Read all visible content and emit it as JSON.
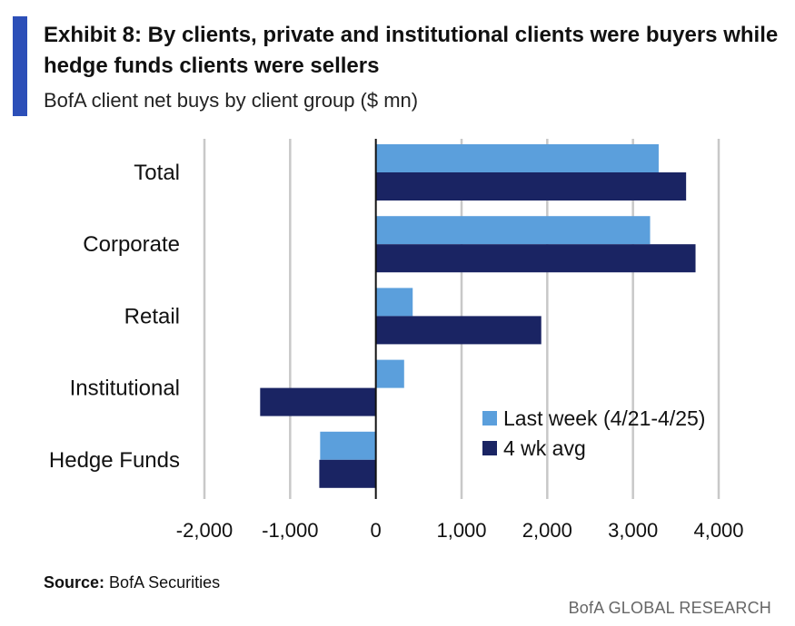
{
  "header": {
    "title": "Exhibit 8: By clients, private and institutional clients were buyers while hedge funds clients were sellers",
    "subtitle": "BofA client net buys by client group ($ mn)"
  },
  "footer": {
    "source_label": "Source:",
    "source_text": "BofA Securities",
    "brand": "BofA GLOBAL RESEARCH"
  },
  "colors": {
    "accent": "#2c4fb8",
    "series1": "#5b9fdc",
    "series2": "#1a2463",
    "grid": "#c8c8c8"
  },
  "chart_data": {
    "type": "bar",
    "orientation": "horizontal",
    "title": "Exhibit 8: By clients, private and institutional clients were buyers while hedge funds clients were sellers",
    "subtitle": "BofA client net buys by client group ($ mn)",
    "categories": [
      "Total",
      "Corporate",
      "Retail",
      "Institutional",
      "Hedge Funds"
    ],
    "series": [
      {
        "name": "Last week (4/21-4/25)",
        "values": [
          3300,
          3200,
          430,
          330,
          -650
        ]
      },
      {
        "name": "4 wk avg",
        "values": [
          3620,
          3730,
          1930,
          -1350,
          -660
        ]
      }
    ],
    "xlim": [
      -2000,
      4000
    ],
    "xticks": [
      -2000,
      -1000,
      0,
      1000,
      2000,
      3000,
      4000
    ],
    "xtick_labels": [
      "-2,000",
      "-1,000",
      "0",
      "1,000",
      "2,000",
      "3,000",
      "4,000"
    ],
    "xlabel": "",
    "ylabel": "",
    "grid": true,
    "legend_position": "lower-right"
  }
}
